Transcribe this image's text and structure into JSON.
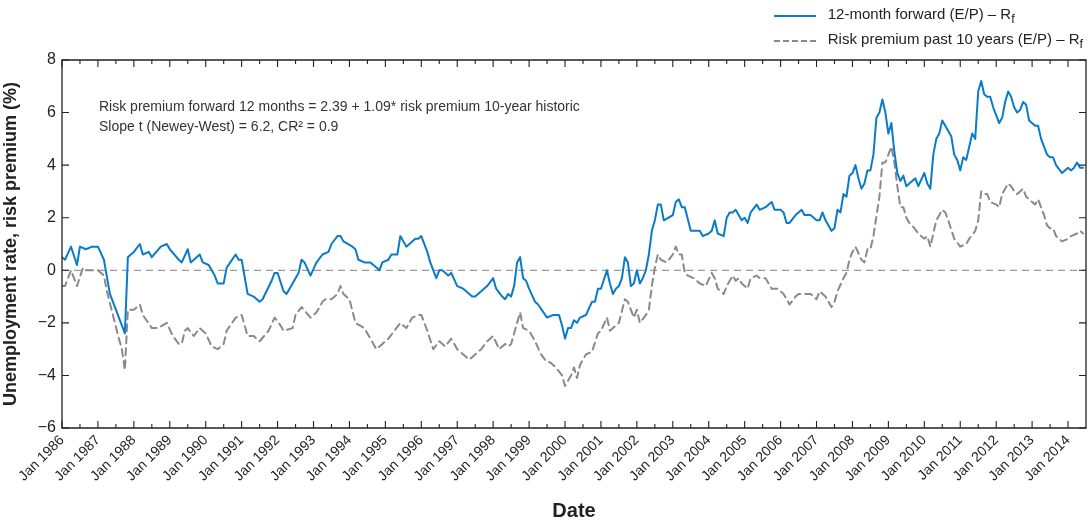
{
  "chart_data": {
    "type": "line",
    "xlabel": "Date",
    "ylabel": "Unemployment rate, risk premium (%)",
    "annotations": [
      "Risk premium forward 12 months = 2.39 + 1.09* risk premium 10-year historic",
      "Slope t (Newey-West) = 6.2, CR² = 0.9"
    ],
    "xlim": [
      "1986-01",
      "2014-07"
    ],
    "xticks": [
      {
        "value": "1986-01",
        "label": "Jan 1986"
      },
      {
        "value": "1986-07",
        "label": null
      },
      {
        "value": "1987-01",
        "label": "Jan 1987"
      },
      {
        "value": "1987-07",
        "label": null
      },
      {
        "value": "1988-01",
        "label": "Jan 1988"
      },
      {
        "value": "1988-07",
        "label": null
      },
      {
        "value": "1989-01",
        "label": "Jan 1989"
      },
      {
        "value": "1989-07",
        "label": null
      },
      {
        "value": "1990-01",
        "label": "Jan 1990"
      },
      {
        "value": "1990-07",
        "label": null
      },
      {
        "value": "1991-01",
        "label": "Jan 1991"
      },
      {
        "value": "1991-07",
        "label": null
      },
      {
        "value": "1992-01",
        "label": "Jan 1992"
      },
      {
        "value": "1992-07",
        "label": null
      },
      {
        "value": "1993-01",
        "label": "Jan 1993"
      },
      {
        "value": "1993-07",
        "label": null
      },
      {
        "value": "1994-01",
        "label": "Jan 1994"
      },
      {
        "value": "1994-07",
        "label": null
      },
      {
        "value": "1995-01",
        "label": "Jan 1995"
      },
      {
        "value": "1995-07",
        "label": null
      },
      {
        "value": "1996-01",
        "label": "Jan 1996"
      },
      {
        "value": "1996-07",
        "label": null
      },
      {
        "value": "1997-01",
        "label": "Jan 1997"
      },
      {
        "value": "1997-07",
        "label": null
      },
      {
        "value": "1998-01",
        "label": "Jan 1998"
      },
      {
        "value": "1998-07",
        "label": null
      },
      {
        "value": "1999-01",
        "label": "Jan 1999"
      },
      {
        "value": "1999-07",
        "label": null
      },
      {
        "value": "2000-01",
        "label": "Jan 2000"
      },
      {
        "value": "2000-07",
        "label": null
      },
      {
        "value": "2001-01",
        "label": "Jan 2001"
      },
      {
        "value": "2001-07",
        "label": null
      },
      {
        "value": "2002-01",
        "label": "Jan 2002"
      },
      {
        "value": "2002-07",
        "label": null
      },
      {
        "value": "2003-01",
        "label": "Jan 2003"
      },
      {
        "value": "2003-07",
        "label": null
      },
      {
        "value": "2004-01",
        "label": "Jan 2004"
      },
      {
        "value": "2004-07",
        "label": null
      },
      {
        "value": "2005-01",
        "label": "Jan 2005"
      },
      {
        "value": "2005-07",
        "label": null
      },
      {
        "value": "2006-01",
        "label": "Jan 2006"
      },
      {
        "value": "2006-07",
        "label": null
      },
      {
        "value": "2007-01",
        "label": "Jan 2007"
      },
      {
        "value": "2007-07",
        "label": null
      },
      {
        "value": "2008-01",
        "label": "Jan 2008"
      },
      {
        "value": "2008-07",
        "label": null
      },
      {
        "value": "2009-01",
        "label": "Jan 2009"
      },
      {
        "value": "2009-07",
        "label": null
      },
      {
        "value": "2010-01",
        "label": "Jan 2010"
      },
      {
        "value": "2010-07",
        "label": null
      },
      {
        "value": "2011-01",
        "label": "Jan 2011"
      },
      {
        "value": "2011-07",
        "label": null
      },
      {
        "value": "2012-01",
        "label": "Jan 2012"
      },
      {
        "value": "2012-07",
        "label": null
      },
      {
        "value": "2013-01",
        "label": "Jan 2013"
      },
      {
        "value": "2013-07",
        "label": null
      },
      {
        "value": "2014-01",
        "label": "Jan 2014"
      }
    ],
    "ylim": [
      -6,
      8
    ],
    "yticks": [
      -6,
      -4,
      -2,
      0,
      2,
      4,
      6,
      8
    ],
    "legend": "top right",
    "ref_lines": [
      {
        "axis": "y",
        "value": 0,
        "color": "#9a9a9a",
        "line_style": "dashed"
      }
    ],
    "series": [
      {
        "name": "12-month forward (E/P) – R$_{f}$",
        "color": "#0a7bc9",
        "x": [
          "1986-01",
          "1986-02",
          "1986-04",
          "1986-06",
          "1986-07",
          "1986-09",
          "1986-11",
          "1987-01",
          "1987-03",
          "1987-05",
          "1987-07",
          "1987-10",
          "1987-11",
          "1988-01",
          "1988-03",
          "1988-04",
          "1988-06",
          "1988-07",
          "1988-10",
          "1988-12",
          "1989-01",
          "1989-04",
          "1989-05",
          "1989-07",
          "1989-08",
          "1989-11",
          "1989-12",
          "1990-02",
          "1990-04",
          "1990-05",
          "1990-07",
          "1990-08",
          "1990-11",
          "1990-12",
          "1991-01",
          "1991-03",
          "1991-05",
          "1991-07",
          "1991-08",
          "1991-11",
          "1991-12",
          "1992-01",
          "1992-03",
          "1992-04",
          "1992-06",
          "1992-08",
          "1992-09",
          "1992-10",
          "1992-12",
          "1993-02",
          "1993-04",
          "1993-06",
          "1993-07",
          "1993-09",
          "1993-10",
          "1993-11",
          "1994-02",
          "1994-03",
          "1994-04",
          "1994-06",
          "1994-08",
          "1994-09",
          "1994-11",
          "1994-12",
          "1995-02",
          "1995-03",
          "1995-05",
          "1995-06",
          "1995-08",
          "1995-11",
          "1995-12",
          "1996-01",
          "1996-03",
          "1996-04",
          "1996-06",
          "1996-07",
          "1996-08",
          "1996-10",
          "1996-11",
          "1997-01",
          "1997-03",
          "1997-06",
          "1997-07",
          "1997-09",
          "1997-11",
          "1998-01",
          "1998-02",
          "1998-04",
          "1998-05",
          "1998-06",
          "1998-07",
          "1998-08",
          "1998-09",
          "1998-10",
          "1998-11",
          "1998-12",
          "1999-01",
          "1999-03",
          "1999-04",
          "1999-07",
          "1999-09",
          "1999-11",
          "1999-12",
          "2000-01",
          "2000-02",
          "2000-03",
          "2000-04",
          "2000-05",
          "2000-06",
          "2000-08",
          "2000-10",
          "2000-11",
          "2000-12",
          "2001-01",
          "2001-03",
          "2001-04",
          "2001-05",
          "2001-06",
          "2001-07",
          "2001-08",
          "2001-09",
          "2001-10",
          "2001-11",
          "2001-12",
          "2002-01",
          "2002-02",
          "2002-03",
          "2002-04",
          "2002-05",
          "2002-06",
          "2002-07",
          "2002-08",
          "2002-09",
          "2002-10",
          "2003-01",
          "2003-02",
          "2003-03",
          "2003-04",
          "2003-05",
          "2003-07",
          "2003-08",
          "2003-10",
          "2003-11",
          "2004-01",
          "2004-02",
          "2004-03",
          "2004-04",
          "2004-06",
          "2004-07",
          "2004-08",
          "2004-09",
          "2004-10",
          "2004-12",
          "2005-01",
          "2005-02",
          "2005-03",
          "2005-05",
          "2005-06",
          "2005-08",
          "2005-10",
          "2005-11",
          "2006-01",
          "2006-02",
          "2006-03",
          "2006-04",
          "2006-06",
          "2006-07",
          "2006-08",
          "2006-09",
          "2006-11",
          "2007-01",
          "2007-02",
          "2007-03",
          "2007-04",
          "2007-05",
          "2007-06",
          "2007-07",
          "2007-08",
          "2007-09",
          "2007-10",
          "2007-11",
          "2007-12",
          "2008-01",
          "2008-02",
          "2008-03",
          "2008-04",
          "2008-05",
          "2008-06",
          "2008-07",
          "2008-08",
          "2008-09",
          "2008-10",
          "2008-11",
          "2008-12",
          "2009-01",
          "2009-02",
          "2009-03",
          "2009-04",
          "2009-05",
          "2009-06",
          "2009-07",
          "2009-08",
          "2009-09",
          "2009-10",
          "2009-11",
          "2010-01",
          "2010-02",
          "2010-03",
          "2010-04",
          "2010-05",
          "2010-06",
          "2010-07",
          "2010-08",
          "2010-10",
          "2010-11",
          "2010-12",
          "2011-01",
          "2011-02",
          "2011-03",
          "2011-04",
          "2011-05",
          "2011-06",
          "2011-07",
          "2011-08",
          "2011-09",
          "2011-10",
          "2011-11",
          "2011-12",
          "2012-02",
          "2012-03",
          "2012-04",
          "2012-05",
          "2012-06",
          "2012-07",
          "2012-08",
          "2012-09",
          "2012-10",
          "2012-11",
          "2012-12",
          "2013-02",
          "2013-03",
          "2013-04",
          "2013-06",
          "2013-07",
          "2013-08",
          "2013-09",
          "2013-11",
          "2014-01",
          "2014-02",
          "2014-03",
          "2014-04",
          "2014-05",
          "2014-06"
        ],
        "values": [
          0.5,
          0.4,
          0.9,
          0.2,
          0.9,
          0.8,
          0.9,
          0.9,
          0.4,
          -0.9,
          -1.5,
          -2.4,
          0.5,
          0.7,
          1.0,
          0.6,
          0.7,
          0.5,
          0.9,
          1.0,
          0.8,
          0.4,
          0.3,
          0.8,
          0.3,
          0.6,
          0.3,
          0.2,
          -0.2,
          -0.5,
          -0.5,
          0.1,
          0.6,
          0.4,
          0.4,
          -0.9,
          -1.0,
          -1.2,
          -1.1,
          -0.4,
          -0.1,
          -0.1,
          -0.8,
          -0.9,
          -0.5,
          -0.1,
          0.4,
          0.3,
          -0.2,
          0.3,
          0.6,
          0.7,
          1.0,
          1.3,
          1.3,
          1.1,
          0.9,
          0.8,
          0.4,
          0.3,
          0.3,
          0.2,
          0.0,
          0.3,
          0.4,
          0.6,
          0.6,
          1.3,
          0.9,
          1.2,
          1.2,
          1.3,
          0.7,
          0.3,
          -0.3,
          0.0,
          0.0,
          -0.2,
          -0.1,
          -0.6,
          -0.7,
          -1.0,
          -1.0,
          -0.8,
          -0.6,
          -0.3,
          -0.7,
          -1.0,
          -1.1,
          -0.9,
          -1.0,
          -0.6,
          0.3,
          0.5,
          -0.3,
          -0.4,
          -0.7,
          -1.2,
          -1.3,
          -1.8,
          -1.7,
          -1.7,
          -2.1,
          -2.6,
          -2.2,
          -2.2,
          -1.9,
          -2.0,
          -1.8,
          -1.7,
          -1.2,
          -1.2,
          -0.7,
          -0.7,
          0.0,
          -0.5,
          -0.9,
          -0.7,
          -0.6,
          -0.3,
          0.5,
          0.3,
          -0.6,
          -0.5,
          0.0,
          -0.5,
          -0.3,
          0.0,
          0.6,
          1.5,
          1.9,
          2.5,
          2.5,
          1.9,
          2.1,
          2.6,
          2.7,
          2.4,
          2.4,
          1.5,
          1.5,
          1.5,
          1.3,
          1.4,
          1.5,
          1.9,
          1.4,
          1.3,
          2.0,
          2.2,
          2.2,
          2.3,
          1.9,
          2.0,
          1.8,
          2.2,
          2.5,
          2.3,
          2.4,
          2.6,
          2.3,
          2.3,
          2.2,
          1.8,
          1.8,
          2.1,
          2.2,
          2.3,
          2.1,
          2.1,
          1.9,
          1.9,
          2.2,
          1.9,
          1.7,
          1.5,
          1.6,
          2.3,
          2.2,
          2.9,
          2.8,
          3.6,
          3.7,
          4.0,
          3.5,
          3.1,
          3.3,
          3.8,
          3.8,
          4.4,
          5.8,
          6.0,
          6.5,
          6.0,
          5.2,
          5.6,
          4.5,
          3.7,
          3.4,
          3.6,
          3.2,
          3.3,
          3.4,
          3.5,
          3.2,
          3.7,
          3.3,
          3.1,
          4.4,
          5.0,
          5.2,
          5.7,
          5.5,
          5.1,
          4.4,
          4.2,
          3.8,
          4.3,
          4.2,
          4.7,
          5.2,
          5.0,
          6.8,
          7.2,
          6.7,
          6.6,
          6.6,
          6.2,
          5.6,
          5.8,
          6.4,
          6.8,
          6.6,
          6.2,
          6.0,
          6.1,
          6.4,
          6.3,
          5.7,
          5.5,
          5.5,
          5.0,
          4.4,
          4.3,
          4.3,
          4.0,
          3.7,
          3.9,
          3.8,
          3.9,
          4.1,
          3.9,
          3.9
        ]
      },
      {
        "name": "Risk premium past 10 years (E/P) – R$_{f}$",
        "color": "#8a8a8a",
        "line_style": "dashed",
        "x": [
          "1986-01",
          "1986-02",
          "1986-04",
          "1986-06",
          "1986-08",
          "1986-09",
          "1986-11",
          "1987-01",
          "1987-03",
          "1987-04",
          "1987-06",
          "1987-08",
          "1987-09",
          "1987-10",
          "1987-11",
          "1988-01",
          "1988-03",
          "1988-04",
          "1988-07",
          "1988-09",
          "1988-12",
          "1989-02",
          "1989-04",
          "1989-05",
          "1989-06",
          "1989-07",
          "1989-09",
          "1989-11",
          "1990-01",
          "1990-03",
          "1990-05",
          "1990-07",
          "1990-08",
          "1990-11",
          "1991-01",
          "1991-03",
          "1991-05",
          "1991-07",
          "1991-10",
          "1991-12",
          "1992-02",
          "1992-03",
          "1992-06",
          "1992-07",
          "1992-09",
          "1992-12",
          "1993-02",
          "1993-04",
          "1993-05",
          "1993-07",
          "1993-09",
          "1993-10",
          "1993-11",
          "1994-01",
          "1994-03",
          "1994-06",
          "1994-08",
          "1994-10",
          "1994-12",
          "1995-02",
          "1995-04",
          "1995-06",
          "1995-08",
          "1995-10",
          "1995-12",
          "1996-01",
          "1996-03",
          "1996-05",
          "1996-07",
          "1996-09",
          "1996-11",
          "1997-01",
          "1997-03",
          "1997-05",
          "1997-07",
          "1997-09",
          "1997-11",
          "1998-01",
          "1998-03",
          "1998-05",
          "1998-06",
          "1998-07",
          "1998-09",
          "1998-10",
          "1998-11",
          "1999-01",
          "1999-03",
          "1999-05",
          "1999-07",
          "1999-08",
          "1999-10",
          "1999-12",
          "2000-01",
          "2000-02",
          "2000-03",
          "2000-04",
          "2000-05",
          "2000-06",
          "2000-08",
          "2000-10",
          "2000-12",
          "2001-01",
          "2001-03",
          "2001-04",
          "2001-06",
          "2001-07",
          "2001-09",
          "2001-10",
          "2001-12",
          "2002-01",
          "2002-02",
          "2002-04",
          "2002-05",
          "2002-06",
          "2002-07",
          "2002-08",
          "2002-09",
          "2002-11",
          "2003-01",
          "2003-02",
          "2003-03",
          "2003-04",
          "2003-05",
          "2003-06",
          "2003-08",
          "2003-10",
          "2003-12",
          "2004-02",
          "2004-03",
          "2004-04",
          "2004-06",
          "2004-07",
          "2004-09",
          "2004-10",
          "2004-11",
          "2004-12",
          "2005-01",
          "2005-02",
          "2005-03",
          "2005-05",
          "2005-06",
          "2005-08",
          "2005-10",
          "2005-12",
          "2006-02",
          "2006-04",
          "2006-06",
          "2006-07",
          "2006-09",
          "2006-11",
          "2007-01",
          "2007-02",
          "2007-04",
          "2007-06",
          "2007-07",
          "2007-08",
          "2007-10",
          "2007-11",
          "2007-12",
          "2008-01",
          "2008-02",
          "2008-04",
          "2008-05",
          "2008-06",
          "2008-07",
          "2008-08",
          "2008-10",
          "2008-11",
          "2008-12",
          "2009-01",
          "2009-02",
          "2009-03",
          "2009-04",
          "2009-05",
          "2009-06",
          "2009-07",
          "2009-08",
          "2009-09",
          "2009-11",
          "2010-01",
          "2010-02",
          "2010-03",
          "2010-04",
          "2010-05",
          "2010-07",
          "2010-08",
          "2010-09",
          "2010-11",
          "2011-01",
          "2011-03",
          "2011-04",
          "2011-06",
          "2011-07",
          "2011-08",
          "2011-09",
          "2011-10",
          "2011-11",
          "2012-01",
          "2012-02",
          "2012-03",
          "2012-05",
          "2012-06",
          "2012-07",
          "2012-08",
          "2012-09",
          "2012-10",
          "2012-11",
          "2013-01",
          "2013-02",
          "2013-03",
          "2013-05",
          "2013-06",
          "2013-07",
          "2013-08",
          "2013-09",
          "2013-11",
          "2014-01",
          "2014-02",
          "2014-04",
          "2014-05",
          "2014-06"
        ],
        "values": [
          -0.6,
          -0.6,
          0.0,
          -0.6,
          0.1,
          0.0,
          0.0,
          0.0,
          -0.2,
          -0.8,
          -1.7,
          -2.6,
          -3.0,
          -3.8,
          -1.5,
          -1.5,
          -1.3,
          -1.7,
          -2.2,
          -2.2,
          -2.0,
          -2.5,
          -2.8,
          -2.8,
          -2.3,
          -2.2,
          -2.5,
          -2.2,
          -2.4,
          -2.9,
          -3.0,
          -2.8,
          -2.3,
          -1.8,
          -1.7,
          -2.5,
          -2.5,
          -2.7,
          -2.3,
          -1.8,
          -2.1,
          -2.3,
          -2.2,
          -1.7,
          -1.4,
          -1.8,
          -1.6,
          -1.2,
          -1.1,
          -1.1,
          -0.9,
          -0.6,
          -0.9,
          -1.1,
          -2.0,
          -2.2,
          -2.6,
          -3.0,
          -2.8,
          -2.6,
          -2.3,
          -2.0,
          -2.2,
          -1.8,
          -1.7,
          -1.7,
          -2.3,
          -3.0,
          -2.7,
          -2.9,
          -2.6,
          -3.0,
          -3.2,
          -3.4,
          -3.2,
          -3.0,
          -2.7,
          -2.5,
          -3.0,
          -2.8,
          -2.9,
          -2.8,
          -2.0,
          -1.6,
          -2.2,
          -2.3,
          -2.7,
          -3.2,
          -3.5,
          -3.5,
          -3.7,
          -4.0,
          -4.4,
          -4.2,
          -4.0,
          -3.7,
          -4.1,
          -3.6,
          -3.2,
          -3.1,
          -2.4,
          -2.3,
          -1.8,
          -2.3,
          -2.1,
          -2.0,
          -1.1,
          -1.2,
          -1.8,
          -1.5,
          -2.0,
          -1.7,
          -1.5,
          -0.6,
          0.1,
          0.6,
          0.4,
          0.3,
          0.6,
          0.9,
          0.6,
          0.6,
          -0.1,
          -0.2,
          -0.3,
          -0.5,
          -0.6,
          -0.1,
          -0.3,
          -0.7,
          -0.9,
          -0.6,
          -0.2,
          -0.4,
          -0.3,
          -0.5,
          -0.6,
          -0.7,
          -0.3,
          -0.2,
          -0.3,
          -0.3,
          -0.7,
          -0.7,
          -0.9,
          -1.3,
          -1.0,
          -0.9,
          -0.9,
          -0.9,
          -1.1,
          -0.8,
          -1.0,
          -1.4,
          -1.2,
          -0.8,
          -0.3,
          -0.1,
          0.4,
          0.7,
          0.9,
          0.4,
          0.3,
          0.8,
          0.8,
          1.3,
          2.8,
          4.1,
          4.1,
          4.4,
          4.7,
          4.1,
          3.2,
          2.4,
          2.4,
          2.0,
          1.8,
          1.7,
          1.4,
          1.2,
          1.3,
          0.9,
          1.4,
          1.9,
          2.3,
          2.2,
          1.9,
          1.2,
          0.9,
          1.0,
          1.2,
          1.5,
          1.9,
          3.0,
          2.9,
          2.9,
          2.6,
          2.5,
          2.4,
          2.9,
          3.3,
          3.2,
          3.0,
          2.9,
          3.0,
          3.1,
          2.8,
          2.6,
          2.5,
          2.7,
          2.1,
          1.7,
          1.6,
          1.6,
          1.3,
          1.1,
          1.2,
          1.3,
          1.4,
          1.5,
          1.4
        ]
      }
    ]
  }
}
